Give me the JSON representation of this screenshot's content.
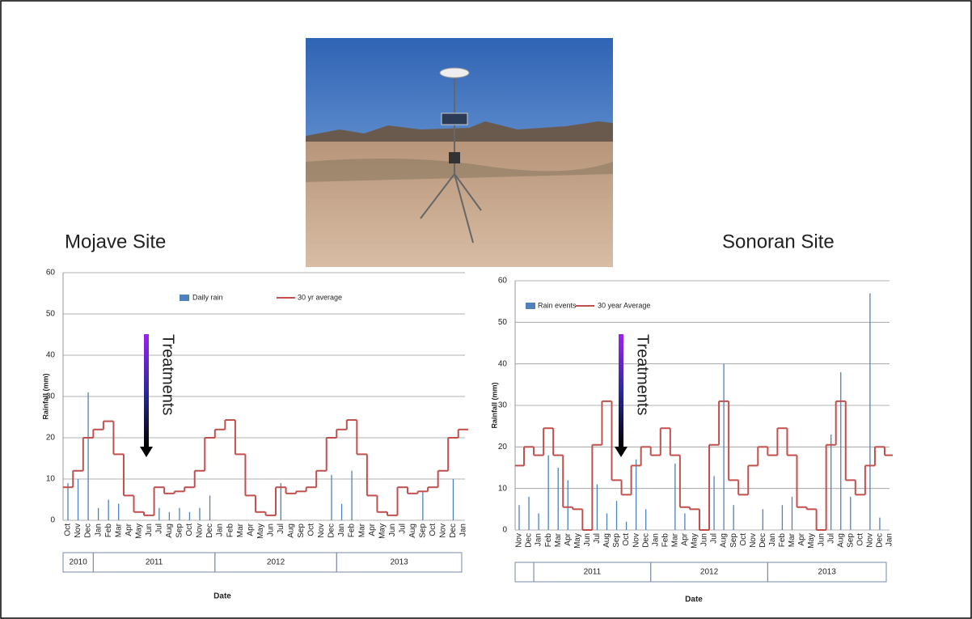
{
  "chart_data": [
    {
      "type": "bar",
      "title": "Mojave Site",
      "y_label": "Rainfall (mm)",
      "x_label": "Date",
      "annotation": "Treatments",
      "categories": [
        "Oct",
        "Nov",
        "Dec",
        "Jan",
        "Feb",
        "Mar",
        "Apr",
        "May",
        "Jun",
        "Jul",
        "Aug",
        "Sep",
        "Oct",
        "Nov",
        "Dec",
        "Jan",
        "Feb",
        "Mar",
        "Apr",
        "May",
        "Jun",
        "Jul",
        "Aug",
        "Sep",
        "Oct",
        "Nov",
        "Dec",
        "Jan",
        "Feb",
        "Mar",
        "Apr",
        "May",
        "Jun",
        "Jul",
        "Aug",
        "Sep",
        "Oct",
        "Nov",
        "Dec",
        "Jan"
      ],
      "years": [
        "2010",
        "2011",
        "2012",
        "2013"
      ],
      "series": [
        {
          "name": "Daily rain",
          "color": "#4f81bd",
          "values": [
            9,
            10,
            31,
            3,
            5,
            4,
            null,
            null,
            null,
            3,
            2,
            3,
            2,
            3,
            6,
            null,
            null,
            null,
            null,
            null,
            null,
            9,
            null,
            null,
            null,
            null,
            11,
            4,
            12,
            null,
            null,
            null,
            null,
            null,
            null,
            7,
            null,
            null,
            10,
            null
          ]
        },
        {
          "name": "30 yr average",
          "color": "#c0504d",
          "values": [
            8,
            12,
            20,
            22,
            24,
            16,
            6,
            2,
            1.2,
            8,
            6.5,
            7,
            8,
            12,
            20,
            22,
            24.3,
            16,
            6,
            2,
            1.2,
            8,
            6.5,
            7,
            8,
            12,
            20,
            22,
            24.3,
            16,
            6,
            2,
            1.2,
            8,
            6.5,
            7,
            8,
            12,
            20,
            22
          ]
        }
      ],
      "ylim": [
        0,
        60
      ],
      "yticks": [
        0,
        10,
        20,
        30,
        40,
        50,
        60
      ],
      "grid": true
    },
    {
      "type": "bar",
      "title": "Sonoran Site",
      "y_label": "Rainfall (mm)",
      "x_label": "Date",
      "annotation": "Treatments",
      "categories": [
        "Nov",
        "Dec",
        "Jan",
        "Feb",
        "Mar",
        "Apr",
        "May",
        "Jun",
        "Jul",
        "Aug",
        "Sep",
        "Oct",
        "Nov",
        "Dec",
        "Jan",
        "Feb",
        "Mar",
        "Apr",
        "May",
        "Jun",
        "Jul",
        "Aug",
        "Sep",
        "Oct",
        "Nov",
        "Dec",
        "Jan",
        "Feb",
        "Mar",
        "Apr",
        "May",
        "Jun",
        "Jul",
        "Aug",
        "Sep",
        "Oct",
        "Nov",
        "Dec",
        "Jan"
      ],
      "years": [
        null,
        "2011",
        "2012",
        "2013"
      ],
      "series": [
        {
          "name": "Rain events",
          "color": "#4f81bd",
          "values": [
            6,
            8,
            4,
            18,
            15,
            12,
            null,
            null,
            11,
            4,
            7,
            2,
            17,
            5,
            null,
            null,
            16,
            4,
            null,
            null,
            13,
            40,
            6,
            null,
            null,
            5,
            null,
            6,
            8,
            null,
            null,
            null,
            23,
            38,
            8,
            null,
            57,
            3,
            null
          ]
        },
        {
          "name": "30 year Average",
          "color": "#c0504d",
          "values": [
            15.5,
            20,
            18,
            24.5,
            18,
            5.5,
            5,
            0,
            20.5,
            31,
            12,
            8.5,
            15.5,
            20,
            18,
            24.5,
            18,
            5.5,
            5,
            0,
            20.5,
            31,
            12,
            8.5,
            15.5,
            20,
            18,
            24.5,
            18,
            5.5,
            5,
            0,
            20.5,
            31,
            12,
            8.5,
            15.5,
            20,
            18
          ]
        }
      ],
      "ylim": [
        0,
        60
      ],
      "yticks": [
        0,
        10,
        20,
        30,
        40,
        50,
        60
      ],
      "grid": true
    }
  ]
}
